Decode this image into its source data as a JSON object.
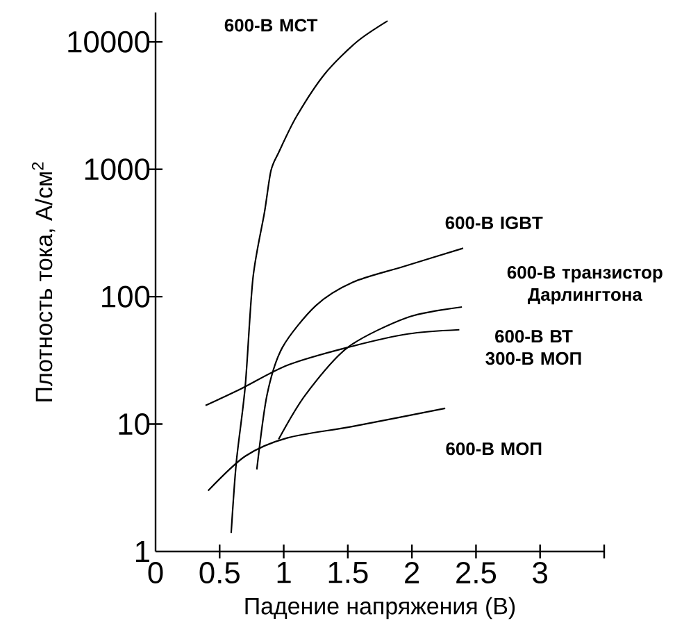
{
  "chart_data": {
    "type": "line",
    "xlabel": "Падение напряжения (В)",
    "ylabel": "Плотность тока, А/см$^{2}$",
    "log": "y",
    "xlim": [
      0,
      3.5
    ],
    "xticks": [
      0,
      0.5,
      1,
      1.5,
      2,
      2.5,
      3,
      {
        "value": 3.5,
        "label": null
      }
    ],
    "ylim": [
      1,
      17000
    ],
    "yticks": [
      1,
      10,
      100,
      1000,
      10000
    ],
    "series": [
      {
        "name": "600-В МСТ",
        "color": "#000000",
        "x": [
          0.59,
          0.63,
          0.7,
          0.76,
          0.85,
          0.9,
          0.96,
          1.1,
          1.32,
          1.57,
          1.81
        ],
        "values": [
          1.4,
          5,
          20,
          140,
          460,
          970,
          1350,
          2600,
          5600,
          10000,
          14600
        ]
      },
      {
        "name": "600-В IGBT",
        "color": "#000000",
        "x": [
          0.79,
          0.87,
          0.99,
          1.25,
          1.54,
          1.93,
          2.4
        ],
        "values": [
          4.4,
          17,
          40,
          85,
          130,
          172,
          240
        ]
      },
      {
        "name": "600-В транзистор Дарлингтона",
        "color": "#000000",
        "x": [
          0.96,
          1.17,
          1.5,
          1.97,
          2.39
        ],
        "values": [
          7.6,
          17,
          40,
          69,
          83
        ]
      },
      {
        "name": "600-В ВТ 300-В МОП",
        "color": "#000000",
        "x": [
          0.39,
          0.67,
          1.03,
          1.5,
          1.97,
          2.37
        ],
        "values": [
          14,
          19,
          29,
          40,
          51,
          55
        ]
      },
      {
        "name": "600-В МОП",
        "color": "#000000",
        "x": [
          0.41,
          0.7,
          1.03,
          1.54,
          2.26
        ],
        "values": [
          3.0,
          5.6,
          7.8,
          9.6,
          13.3
        ]
      }
    ]
  }
}
